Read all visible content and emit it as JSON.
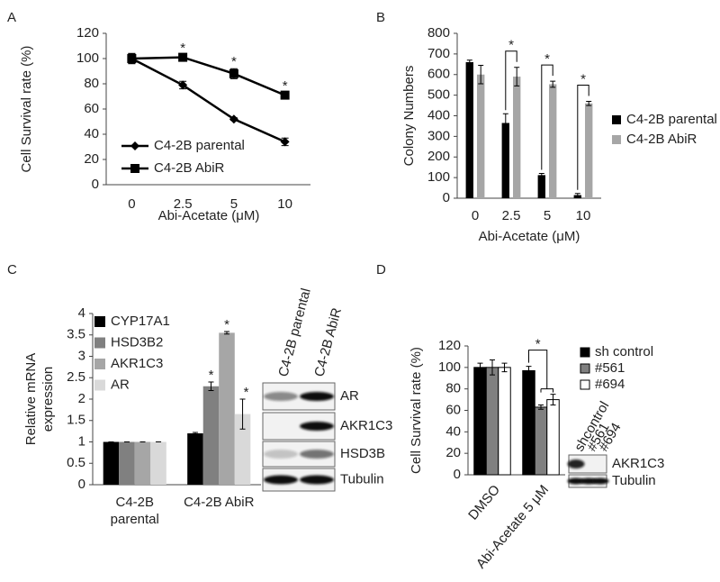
{
  "chart_data": [
    {
      "panel": "A",
      "type": "line",
      "categories": [
        "0",
        "2.5",
        "5",
        "10"
      ],
      "xlabel": "Abi-Acetate (μM)",
      "ylabel": "Cell Survival rate (%)",
      "ylim": [
        0,
        120
      ],
      "yticks": [
        0,
        20,
        40,
        60,
        80,
        100,
        120
      ],
      "legend": "lower left",
      "series": [
        {
          "name": "C4-2B parental",
          "color": "#000000",
          "marker": "diamond",
          "values": [
            100,
            79,
            52,
            34
          ],
          "errors": [
            4,
            3,
            1,
            3
          ]
        },
        {
          "name": "C4-2B AbiR",
          "color": "#000000",
          "marker": "square",
          "values": [
            100,
            101,
            88,
            71
          ],
          "errors": [
            4,
            2,
            4,
            2
          ],
          "significance": [
            null,
            "*",
            "*",
            "*"
          ]
        }
      ]
    },
    {
      "panel": "B",
      "type": "bar",
      "categories": [
        "0",
        "2.5",
        "5",
        "10"
      ],
      "xlabel": "Abi-Acetate (μM)",
      "ylabel": "Colony Numbers",
      "ylim": [
        0,
        800
      ],
      "yticks": [
        0,
        100,
        200,
        300,
        400,
        500,
        600,
        700,
        800
      ],
      "legend": "right",
      "significance": [
        null,
        "*",
        "*",
        "*"
      ],
      "series": [
        {
          "name": "C4-2B parental",
          "color": "#000000",
          "values": [
            660,
            365,
            112,
            15
          ],
          "errors": [
            10,
            45,
            8,
            8
          ]
        },
        {
          "name": "C4-2B AbiR",
          "color": "#a6a6a6",
          "values": [
            600,
            590,
            553,
            460
          ],
          "errors": [
            45,
            45,
            15,
            10
          ]
        }
      ]
    },
    {
      "panel": "C",
      "type": "bar",
      "categories": [
        "C4-2B parental",
        "C4-2B AbiR"
      ],
      "ylabel": "Relative mRNA expression",
      "ylim": [
        0,
        4
      ],
      "yticks": [
        0,
        0.5,
        1,
        1.5,
        2,
        2.5,
        3,
        3.5,
        4
      ],
      "legend": "upper left",
      "series": [
        {
          "name": "CYP17A1",
          "color": "#000000",
          "values": [
            1,
            1.2
          ],
          "errors": [
            0,
            0.02
          ]
        },
        {
          "name": "HSD3B2",
          "color": "#808080",
          "values": [
            1,
            2.3
          ],
          "errors": [
            0,
            0.1
          ],
          "significance": [
            null,
            "*"
          ]
        },
        {
          "name": "AKR1C3",
          "color": "#a6a6a6",
          "values": [
            1,
            3.55
          ],
          "errors": [
            0,
            0.03
          ],
          "significance": [
            null,
            "*"
          ]
        },
        {
          "name": "AR",
          "color": "#d9d9d9",
          "values": [
            1,
            1.65
          ],
          "errors": [
            0,
            0.35
          ],
          "significance": [
            null,
            "*"
          ]
        }
      ],
      "blot": {
        "lanes": [
          "C4-2B parental",
          "C4-2B AbiR"
        ],
        "rows": [
          "AR",
          "AKR1C3",
          "HSD3B",
          "Tubulin"
        ]
      }
    },
    {
      "panel": "D",
      "type": "bar",
      "categories": [
        "DMSO",
        "Abi-Acetate 5 μM"
      ],
      "ylabel": "Cell Survival rate (%)",
      "ylim": [
        0,
        120
      ],
      "yticks": [
        0,
        20,
        40,
        60,
        80,
        100,
        120
      ],
      "legend": "right",
      "bar_edgecolor": "#000000",
      "significance": [
        null,
        "*"
      ],
      "series": [
        {
          "name": "sh control",
          "color": "#000000",
          "values": [
            100,
            97
          ],
          "errors": [
            4,
            4
          ]
        },
        {
          "name": "#561",
          "color": "#808080",
          "values": [
            100,
            63
          ],
          "errors": [
            7,
            2
          ]
        },
        {
          "name": "#694",
          "color": "#ffffff",
          "values": [
            100,
            70
          ],
          "errors": [
            4,
            5
          ]
        }
      ],
      "blot": {
        "lanes": [
          "shcontrol",
          "#561",
          "#694"
        ],
        "rows": [
          "AKR1C3",
          "Tubulin"
        ]
      }
    }
  ]
}
